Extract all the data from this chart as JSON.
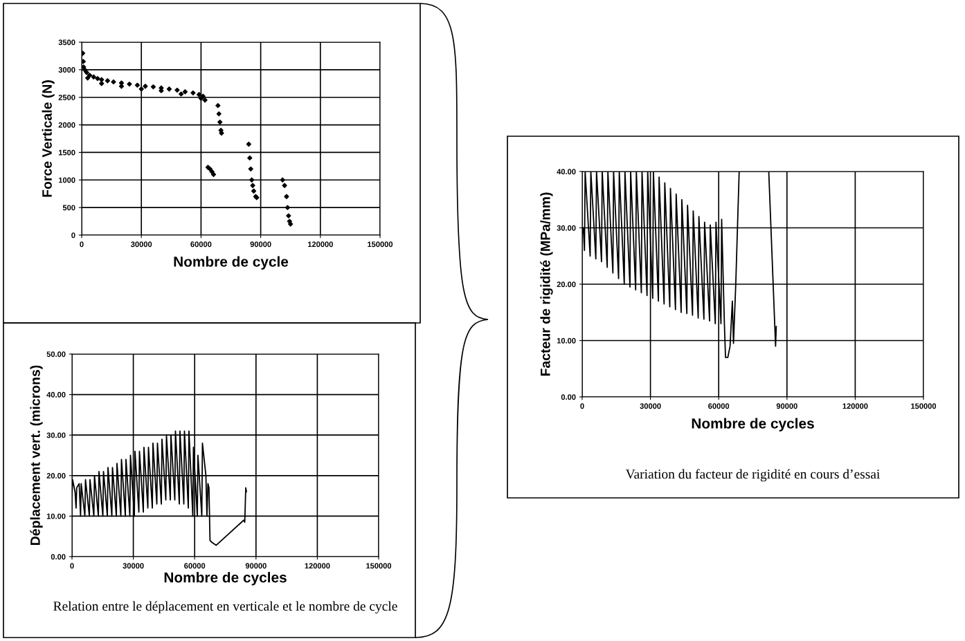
{
  "chart_data": [
    {
      "type": "scatter",
      "xlabel": "Nombre de cycle",
      "ylabel": "Force Verticale (N)",
      "xlim": [
        0,
        150000
      ],
      "ylim": [
        0,
        3500
      ],
      "xticks": [
        0,
        30000,
        60000,
        90000,
        120000,
        150000
      ],
      "yticks": [
        0,
        500,
        1000,
        1500,
        2000,
        2500,
        3000,
        3500
      ],
      "grid": true,
      "marker": "diamond",
      "series": [
        {
          "color": "#000000",
          "x": [
            500,
            800,
            1000,
            1500,
            2500,
            3000,
            4000,
            6000,
            8000,
            10000,
            10000,
            13000,
            16000,
            20000,
            20000,
            24000,
            28000,
            30000,
            32000,
            36000,
            40000,
            40000,
            44000,
            48000,
            50000,
            52000,
            56000,
            59000,
            60000,
            61000,
            62000,
            63500,
            64500,
            65500,
            66300,
            68500,
            69000,
            69500,
            70000,
            70300,
            84000,
            84500,
            85000,
            85500,
            86000,
            86500,
            87500,
            88000,
            101000,
            102000,
            103000,
            103500,
            104000,
            104500,
            105000
          ],
          "values": [
            3300,
            3150,
            3050,
            3000,
            2950,
            2850,
            2900,
            2870,
            2840,
            2820,
            2750,
            2800,
            2780,
            2760,
            2700,
            2740,
            2720,
            2650,
            2700,
            2690,
            2670,
            2620,
            2650,
            2630,
            2560,
            2600,
            2580,
            2550,
            2480,
            2520,
            2450,
            1230,
            1200,
            1150,
            1100,
            2350,
            2200,
            2050,
            1900,
            1850,
            1650,
            1400,
            1200,
            1000,
            900,
            800,
            700,
            680,
            1000,
            900,
            700,
            500,
            350,
            250,
            200
          ]
        }
      ]
    },
    {
      "type": "line",
      "xlabel": "Nombre de cycles",
      "ylabel": "Déplacement vert. (microns)",
      "xlim": [
        0,
        150000
      ],
      "ylim": [
        0,
        50
      ],
      "xticks": [
        0,
        30000,
        60000,
        90000,
        120000,
        150000
      ],
      "yticks": [
        {
          "value": 0,
          "label": "0.00"
        },
        {
          "value": 10,
          "label": "10.00"
        },
        {
          "value": 20,
          "label": "20.00"
        },
        {
          "value": 30,
          "label": "30.00"
        },
        {
          "value": 40,
          "label": "40.00"
        },
        {
          "value": 50,
          "label": "50.00"
        }
      ],
      "grid": true,
      "annotations": [
        "Relation entre le déplacement en verticale et le nombre de cycle"
      ],
      "series": [
        {
          "color": "#000000",
          "x": [
            0,
            300,
            1500,
            2000,
            2300,
            3500,
            4200,
            4500,
            6300,
            6600,
            8500,
            8800,
            10700,
            11000,
            12900,
            13200,
            15100,
            15400,
            17300,
            17600,
            19500,
            19800,
            21700,
            22000,
            23900,
            24200,
            26100,
            26400,
            28300,
            28600,
            30500,
            30800,
            32700,
            33000,
            34900,
            35200,
            37100,
            37400,
            39300,
            39600,
            41500,
            41800,
            43700,
            44000,
            45900,
            46200,
            48100,
            48400,
            50300,
            50600,
            52500,
            52800,
            54700,
            55000,
            56900,
            57200,
            59100,
            59400,
            61300,
            61600,
            63500,
            63800,
            65500,
            66000,
            66500,
            67000,
            67500,
            68500,
            70500,
            84000,
            84500,
            85000,
            85300
          ],
          "values": [
            15,
            19,
            16,
            12,
            17,
            18,
            10,
            18,
            10,
            19,
            10,
            19,
            10,
            20,
            10,
            21,
            10,
            21,
            10,
            22,
            10,
            22,
            10,
            23,
            10,
            24,
            10,
            24,
            10,
            25,
            10,
            26,
            11,
            26,
            11,
            27,
            12,
            27,
            12,
            28,
            13,
            28,
            13,
            29,
            14,
            30,
            14,
            30,
            14,
            31,
            13,
            31,
            13,
            31,
            12,
            31,
            10,
            27,
            10,
            25,
            10,
            28,
            20,
            10,
            18,
            17,
            4,
            3.5,
            2.8,
            9,
            8.5,
            17,
            16
          ]
        }
      ]
    },
    {
      "type": "line",
      "xlabel": "Nombre de cycles",
      "ylabel": "Facteur de rigidité (MPa/mm)",
      "xlim": [
        0,
        150000
      ],
      "ylim": [
        0,
        40
      ],
      "xticks": [
        0,
        30000,
        60000,
        90000,
        120000,
        150000
      ],
      "yticks": [
        {
          "value": 0,
          "label": "0.00"
        },
        {
          "value": 10,
          "label": "10.00"
        },
        {
          "value": 20,
          "label": "20.00"
        },
        {
          "value": 30,
          "label": "30.00"
        },
        {
          "value": 40,
          "label": "40.00"
        }
      ],
      "grid": true,
      "annotations": [
        "Variation du facteur de rigidité en cours d’essai"
      ],
      "series": [
        {
          "color": "#000000",
          "x": [
            0,
            500,
            1000,
            1300,
            3500,
            3800,
            6000,
            6300,
            8500,
            8800,
            11000,
            11300,
            13500,
            13800,
            16000,
            16300,
            18500,
            18800,
            21000,
            21300,
            23500,
            23800,
            26000,
            26300,
            28500,
            28800,
            31000,
            31300,
            33500,
            33800,
            36000,
            36300,
            38500,
            38800,
            41000,
            41300,
            43500,
            43800,
            46000,
            46300,
            48500,
            48800,
            51000,
            51300,
            53500,
            53800,
            56000,
            56300,
            58500,
            58800,
            61000,
            61300,
            62500,
            63000,
            64000,
            65000,
            66000,
            66500,
            67500,
            69000,
            75000,
            82000,
            85000,
            85300
          ],
          "values": [
            29,
            30,
            26,
            40,
            25,
            40,
            24.5,
            40,
            24,
            40,
            23,
            40,
            22,
            40,
            21,
            40,
            20,
            40,
            19.5,
            40,
            19,
            40,
            18.5,
            40,
            18,
            40,
            17.5,
            40,
            17,
            39,
            16.5,
            38,
            16,
            37,
            15.5,
            36,
            15,
            35,
            14.8,
            34,
            14.5,
            33,
            14,
            32,
            13.8,
            31,
            13.5,
            30.5,
            13,
            31,
            13,
            31.5,
            13,
            7,
            7,
            9,
            17,
            9.5,
            20,
            40,
            null,
            40,
            9,
            12.5
          ]
        }
      ]
    }
  ]
}
